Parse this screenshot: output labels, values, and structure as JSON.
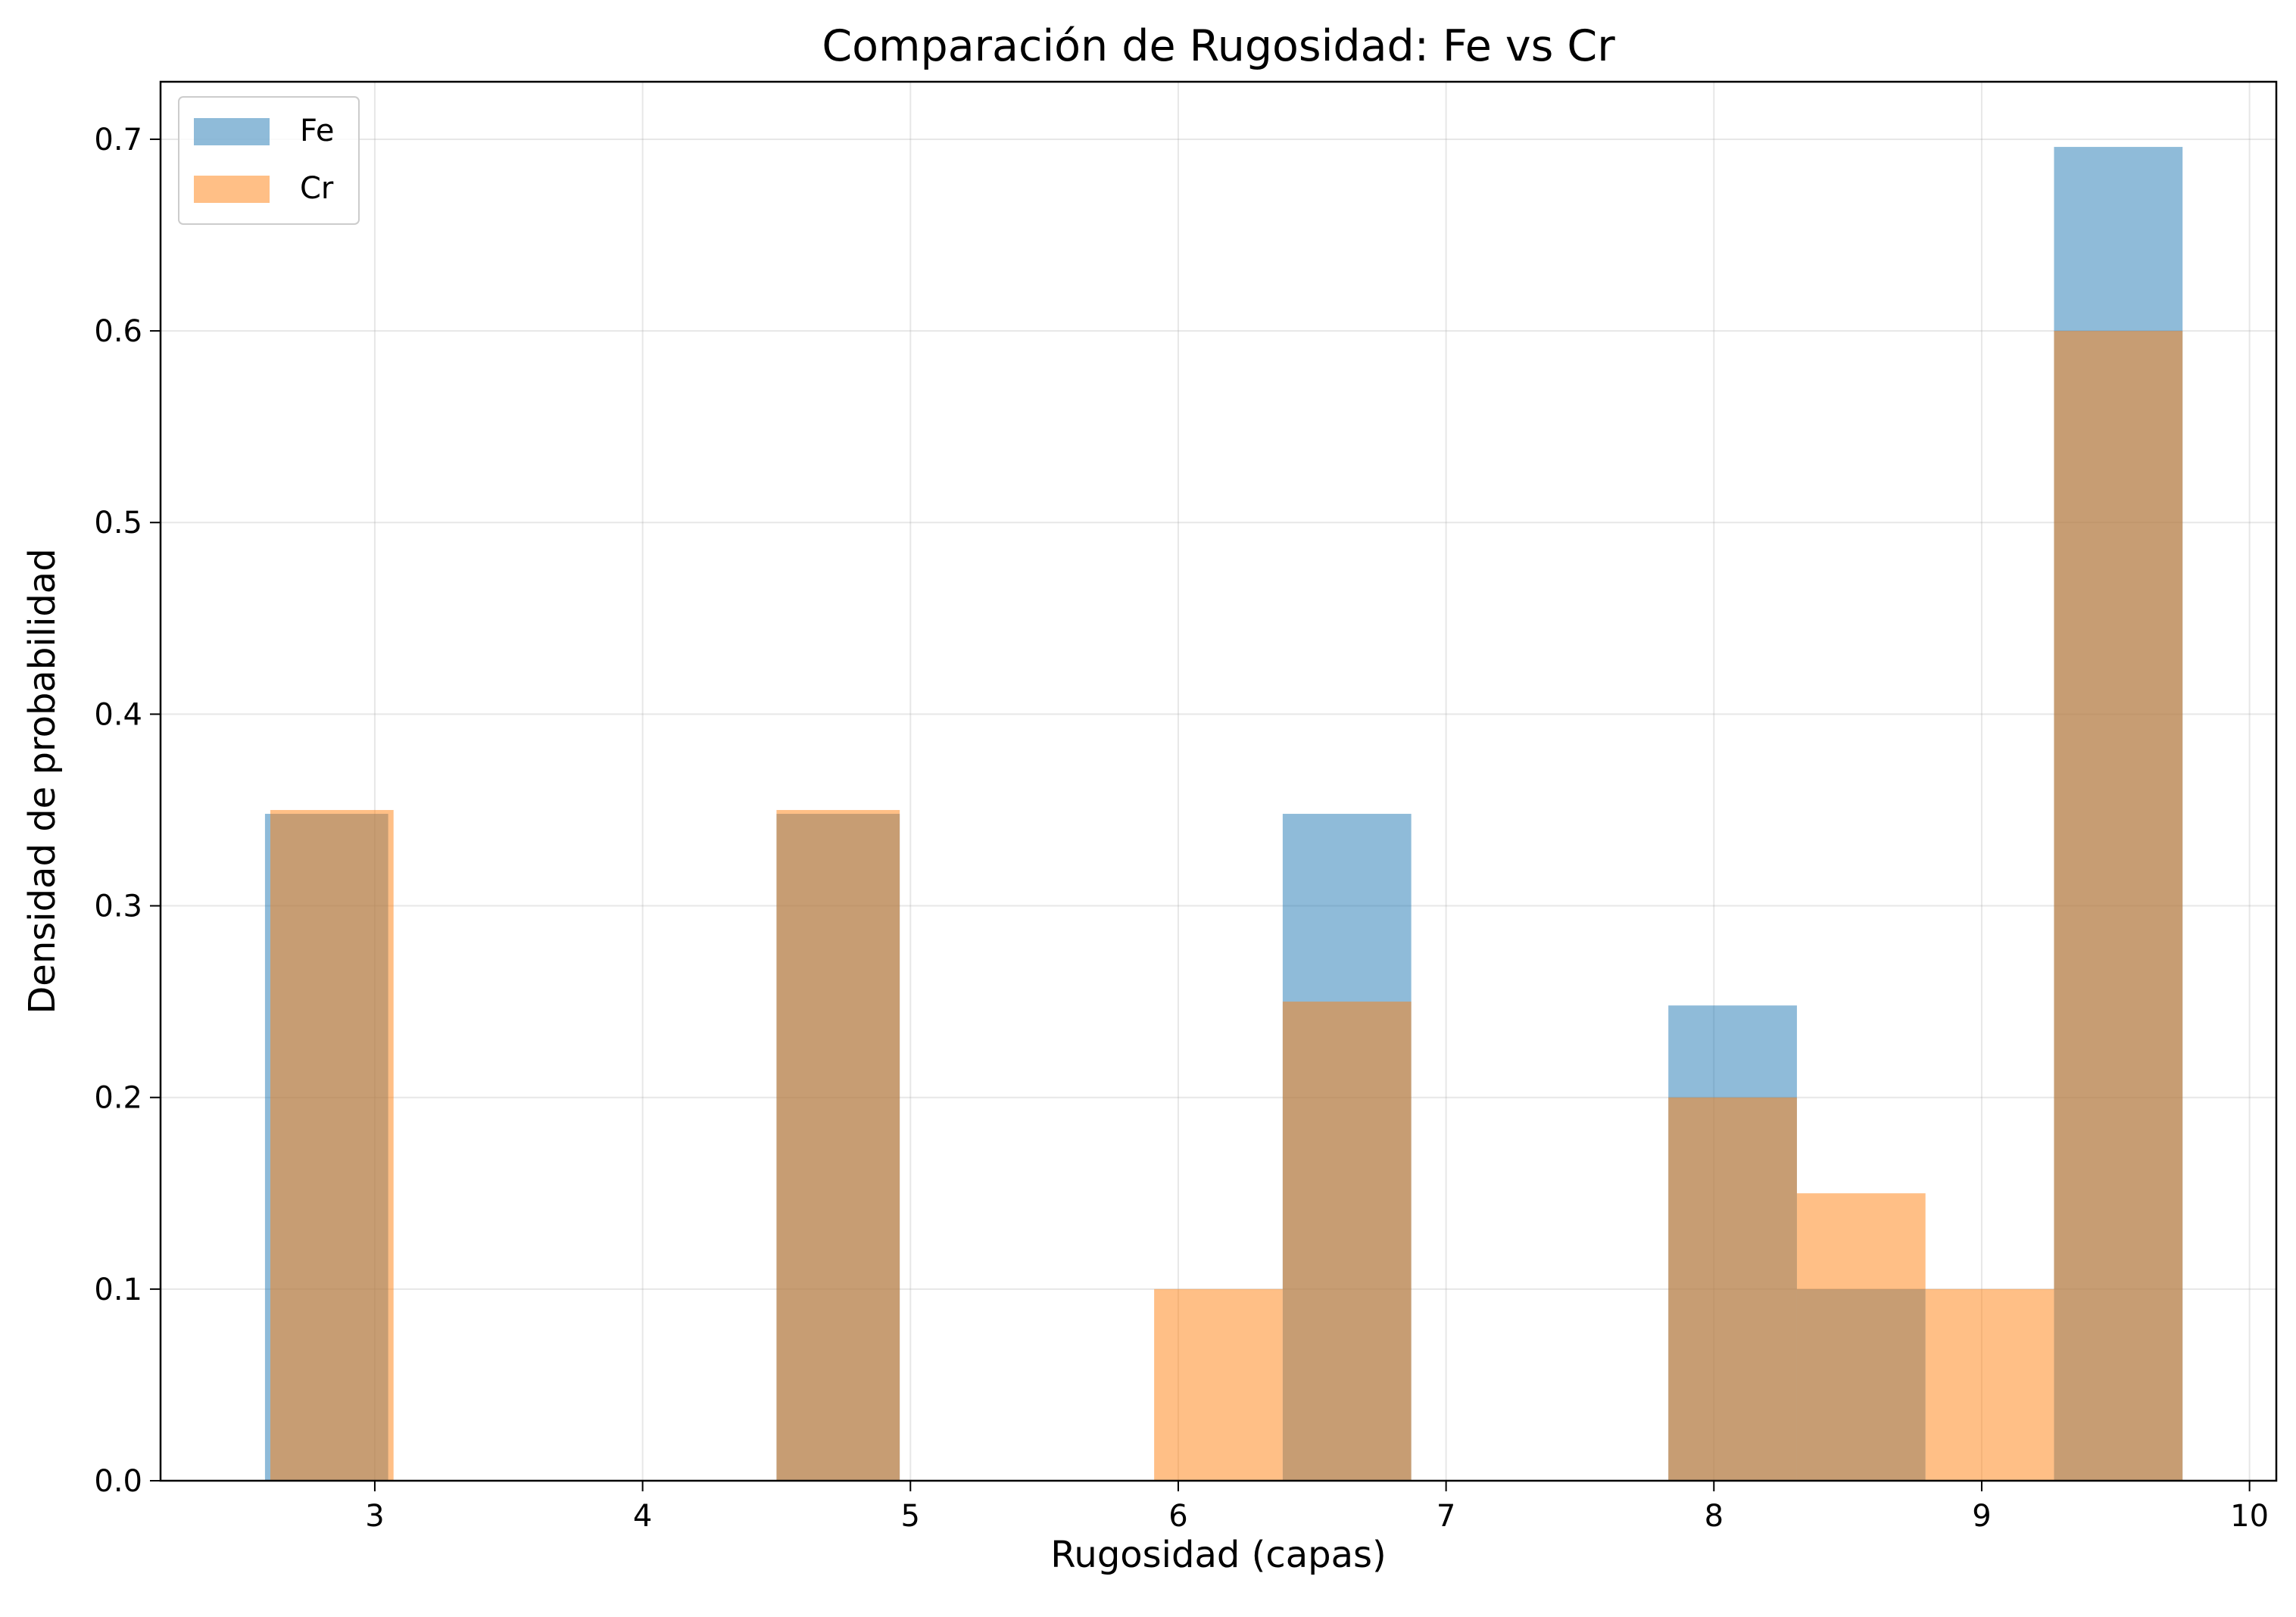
{
  "chart_data": {
    "type": "bar",
    "chart_kind": "histogram (overlaid, density)",
    "title": "Comparación de Rugosidad: Fe vs Cr",
    "xlabel": "Rugosidad (capas)",
    "ylabel": "Densidad de probabilidad",
    "xlim": [
      2.2,
      10.1
    ],
    "ylim": [
      0.0,
      0.73
    ],
    "xticks": [
      3,
      4,
      5,
      6,
      7,
      8,
      9,
      10
    ],
    "yticks": [
      0.0,
      0.1,
      0.2,
      0.3,
      0.4,
      0.5,
      0.6,
      0.7
    ],
    "xtick_labels": [
      "3",
      "4",
      "5",
      "6",
      "7",
      "8",
      "9",
      "10"
    ],
    "ytick_labels": [
      "0.0",
      "0.1",
      "0.2",
      "0.3",
      "0.4",
      "0.5",
      "0.6",
      "0.7"
    ],
    "grid": true,
    "legend_position": "top-left",
    "series": [
      {
        "name": "Fe",
        "color": "#1f77b4",
        "opacity": 0.5,
        "bins": [
          {
            "x0": 2.59,
            "x1": 3.05,
            "value": 0.348
          },
          {
            "x0": 4.5,
            "x1": 4.96,
            "value": 0.348
          },
          {
            "x0": 6.39,
            "x1": 6.87,
            "value": 0.348
          },
          {
            "x0": 7.83,
            "x1": 8.31,
            "value": 0.248
          },
          {
            "x0": 8.31,
            "x1": 8.79,
            "value": 0.1
          },
          {
            "x0": 9.27,
            "x1": 9.75,
            "value": 0.696
          }
        ]
      },
      {
        "name": "Cr",
        "color": "#ff7f0e",
        "opacity": 0.5,
        "bins": [
          {
            "x0": 2.61,
            "x1": 3.07,
            "value": 0.35
          },
          {
            "x0": 4.5,
            "x1": 4.96,
            "value": 0.35
          },
          {
            "x0": 5.91,
            "x1": 6.39,
            "value": 0.1
          },
          {
            "x0": 6.39,
            "x1": 6.87,
            "value": 0.25
          },
          {
            "x0": 7.83,
            "x1": 8.31,
            "value": 0.2
          },
          {
            "x0": 8.31,
            "x1": 8.79,
            "value": 0.15
          },
          {
            "x0": 8.79,
            "x1": 9.27,
            "value": 0.1
          },
          {
            "x0": 9.27,
            "x1": 9.75,
            "value": 0.6
          }
        ]
      }
    ]
  }
}
